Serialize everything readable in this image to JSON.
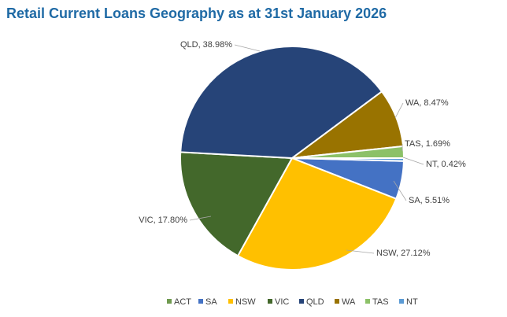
{
  "chart_data": {
    "type": "pie",
    "title": "Retail Current Loans Geography as at 31st January 2026",
    "categories": [
      "ACT",
      "SA",
      "NSW",
      "VIC",
      "QLD",
      "WA",
      "TAS",
      "NT"
    ],
    "values": [
      0.01,
      5.51,
      27.12,
      17.8,
      38.98,
      8.47,
      1.69,
      0.42
    ],
    "value_labels": [
      null,
      "SA, 5.51%",
      "NSW, 27.12%",
      "VIC, 17.80%",
      "QLD, 38.98%",
      "WA, 8.47%",
      "TAS, 1.69%",
      "NT, 0.42%"
    ],
    "colors": [
      "#6f9a4f",
      "#4472c4",
      "#ffc000",
      "#43682b",
      "#264478",
      "#997300",
      "#8cc168",
      "#5b9bd5"
    ],
    "legend": "bottom"
  }
}
